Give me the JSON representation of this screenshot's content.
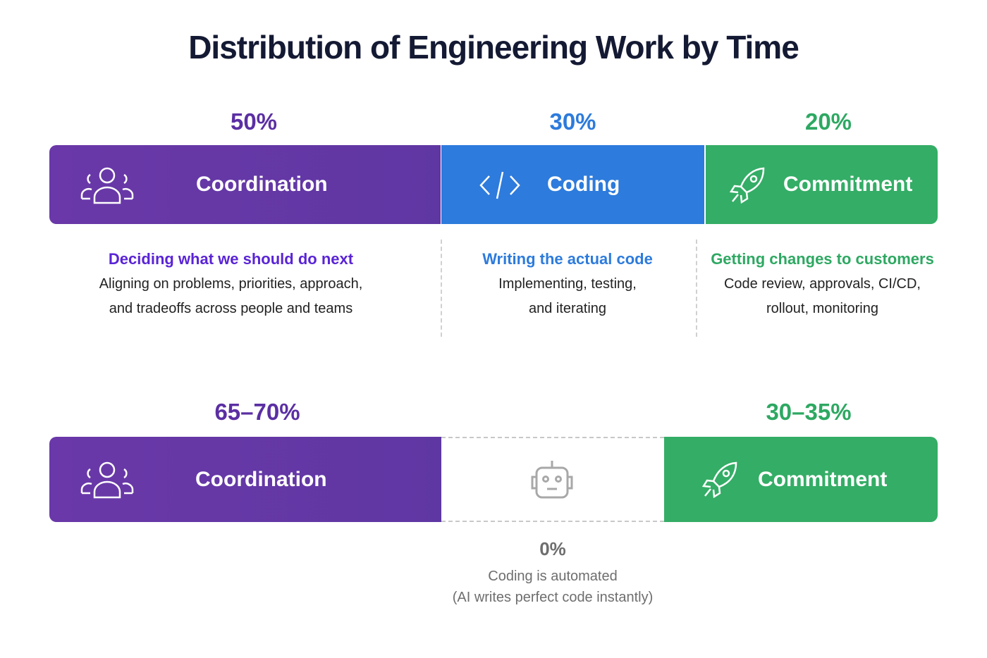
{
  "title": "Distribution of Engineering Work by Time",
  "colors": {
    "coordination": "#6137a6",
    "coding": "#2d7bdc",
    "commitment": "#33ad66",
    "muted": "#8a8a8a"
  },
  "current": {
    "segments": [
      {
        "percent": "50%",
        "label": "Coordination",
        "icon": "people-icon",
        "subtitle": "Deciding what we should do next",
        "desc1": "Aligning on problems, priorities, approach,",
        "desc2": "and tradeoffs across people and teams"
      },
      {
        "percent": "30%",
        "label": "Coding",
        "icon": "code-icon",
        "subtitle": "Writing the actual code",
        "desc1": "Implementing, testing,",
        "desc2": "and iterating"
      },
      {
        "percent": "20%",
        "label": "Commitment",
        "icon": "rocket-icon",
        "subtitle": "Getting changes to customers",
        "desc1": "Code review, approvals, CI/CD,",
        "desc2": "rollout, monitoring"
      }
    ]
  },
  "future": {
    "coordination": {
      "percent": "65–70%",
      "label": "Coordination",
      "icon": "people-icon"
    },
    "coding": {
      "percent": "0%",
      "icon": "robot-icon",
      "note1": "Coding is automated",
      "note2": "(AI writes perfect code instantly)"
    },
    "commitment": {
      "percent": "30–35%",
      "label": "Commitment",
      "icon": "rocket-icon"
    }
  }
}
